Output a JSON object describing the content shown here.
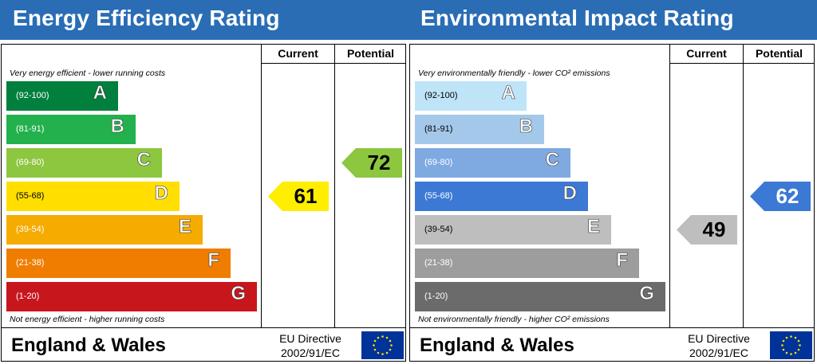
{
  "colors": {
    "header_bg": "#2a6db5",
    "ee_bands": [
      "#007f3d",
      "#23b14d",
      "#8dc63f",
      "#ffde00",
      "#f6ab00",
      "#ef7d00",
      "#c8161d"
    ],
    "ei_bands": [
      "#bfe4f8",
      "#a4c8ea",
      "#7fa9e1",
      "#3c79d4",
      "#bebebe",
      "#9d9d9d",
      "#6b6b6b"
    ],
    "ee_current": "#ffee00",
    "ee_potential": "#8dc63f",
    "ei_current": "#bebebe",
    "ei_potential": "#3c79d4",
    "eu_flag": "#003399",
    "eu_stars": "#ffde00"
  },
  "chart_data": [
    {
      "type": "bar",
      "title": "Energy Efficiency Rating",
      "column_headers": [
        "Current",
        "Potential"
      ],
      "top_caption": "Very energy efficient - lower running costs",
      "bottom_caption": "Not energy efficient - higher running costs",
      "bands": [
        {
          "letter": "A",
          "range": "(92-100)"
        },
        {
          "letter": "B",
          "range": "(81-91)"
        },
        {
          "letter": "C",
          "range": "(69-80)"
        },
        {
          "letter": "D",
          "range": "(55-68)"
        },
        {
          "letter": "E",
          "range": "(39-54)"
        },
        {
          "letter": "F",
          "range": "(21-38)"
        },
        {
          "letter": "G",
          "range": "(1-20)"
        }
      ],
      "current": {
        "value": 61,
        "band": "D"
      },
      "potential": {
        "value": 72,
        "band": "C"
      },
      "footer": "England & Wales",
      "directive_line1": "EU Directive",
      "directive_line2": "2002/91/EC"
    },
    {
      "type": "bar",
      "title": "Environmental Impact Rating",
      "column_headers": [
        "Current",
        "Potential"
      ],
      "top_caption": "Very environmentally friendly - lower CO² emissions",
      "bottom_caption": "Not environmentally friendly - higher CO² emissions",
      "bands": [
        {
          "letter": "A",
          "range": "(92-100)"
        },
        {
          "letter": "B",
          "range": "(81-91)"
        },
        {
          "letter": "C",
          "range": "(69-80)"
        },
        {
          "letter": "D",
          "range": "(55-68)"
        },
        {
          "letter": "E",
          "range": "(39-54)"
        },
        {
          "letter": "F",
          "range": "(21-38)"
        },
        {
          "letter": "G",
          "range": "(1-20)"
        }
      ],
      "current": {
        "value": 49,
        "band": "E"
      },
      "potential": {
        "value": 62,
        "band": "D"
      },
      "footer": "England & Wales",
      "directive_line1": "EU Directive",
      "directive_line2": "2002/91/EC"
    }
  ]
}
